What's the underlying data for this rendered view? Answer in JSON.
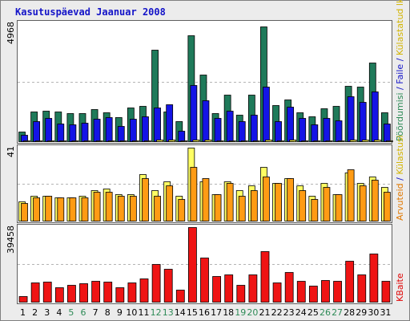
{
  "chart_data": {
    "type": "bar",
    "title": "Kasutuspäevad Jaanuar 2008",
    "categories": [
      "1",
      "2",
      "3",
      "4",
      "5",
      "6",
      "7",
      "8",
      "9",
      "10",
      "11",
      "12",
      "13",
      "14",
      "15",
      "16",
      "17",
      "18",
      "19",
      "20",
      "21",
      "22",
      "23",
      "24",
      "25",
      "26",
      "27",
      "28",
      "29",
      "30",
      "31"
    ],
    "weekend_days": [
      "5",
      "6",
      "12",
      "13",
      "19",
      "20",
      "26",
      "27"
    ],
    "colors": {
      "title": "#1414c8",
      "weekday_tick": "#000000",
      "weekend_tick": "#2e8b57",
      "page": "#ececec",
      "panel": "#ffffff"
    },
    "panels": [
      {
        "tick_label": "4968",
        "ylim": [
          0,
          4968
        ],
        "right_label_parts": [
          {
            "text": "Pöördumisi",
            "color": "#2e8b57"
          },
          {
            "text": " / ",
            "color": "#1414c8"
          },
          {
            "text": "Faile",
            "color": "#1414c8"
          },
          {
            "text": " / ",
            "color": "#1414c8"
          },
          {
            "text": "Külastatud lk",
            "color": "#d2b400"
          }
        ],
        "series": [
          {
            "name": "Pöördumisi",
            "color": "#1f7a5a",
            "values": [
              400,
              1250,
              1300,
              1250,
              1180,
              1180,
              1360,
              1200,
              1020,
              1420,
              1480,
              3850,
              1250,
              830,
              4450,
              2800,
              1180,
              1950,
              1120,
              1950,
              4820,
              1520,
              1760,
              1200,
              1060,
              1380,
              1480,
              2330,
              2300,
              3300,
              1200
            ]
          },
          {
            "name": "Faile",
            "color": "#1414e6",
            "values": [
              280,
              850,
              980,
              760,
              720,
              780,
              960,
              1030,
              640,
              950,
              1040,
              1420,
              1560,
              430,
              2370,
              1720,
              980,
              1280,
              860,
              1120,
              2300,
              840,
              1440,
              980,
              720,
              980,
              880,
              1880,
              1670,
              2090,
              760
            ]
          },
          {
            "name": "Külastatud lk",
            "color": "#f0e64b",
            "values": [
              20,
              40,
              40,
              30,
              30,
              30,
              40,
              40,
              20,
              40,
              40,
              60,
              60,
              20,
              60,
              60,
              40,
              40,
              30,
              40,
              60,
              30,
              60,
              40,
              30,
              40,
              40,
              60,
              60,
              60,
              20
            ]
          }
        ]
      },
      {
        "tick_label": "41",
        "ylim": [
          0,
          41
        ],
        "right_label_parts": [
          {
            "text": "Arvuteid",
            "color": "#e07800"
          },
          {
            "text": " / ",
            "color": "#1414c8"
          },
          {
            "text": "Külastusi",
            "color": "#d2b400"
          }
        ],
        "series": [
          {
            "name": "Külastusi",
            "color": "#ffff64",
            "values": [
              11,
              14,
              14,
              13,
              13,
              14,
              17,
              18,
              15,
              15,
              26,
              17,
              22,
              14,
              41,
              22,
              15,
              22,
              17,
              20,
              30,
              21,
              24,
              20,
              14,
              21,
              15,
              27,
              21,
              25,
              19
            ]
          },
          {
            "name": "Arvuteid",
            "color": "#ff9b14",
            "values": [
              10,
              13,
              14,
              13,
              13,
              13,
              16,
              16,
              14,
              14,
              24,
              14,
              20,
              12,
              30,
              24,
              15,
              21,
              14,
              17,
              25,
              21,
              24,
              17,
              12,
              19,
              15,
              29,
              20,
              23,
              16
            ]
          }
        ]
      },
      {
        "tick_label": "39458",
        "ylim": [
          0,
          39458
        ],
        "right_label_parts": [
          {
            "text": "KBaite",
            "color": "#e00000"
          }
        ],
        "series": [
          {
            "name": "KBaite",
            "color": "#ef1414",
            "values": [
              3000,
              10000,
              10500,
              7800,
              9000,
              9800,
              11000,
              10500,
              7600,
              10000,
              12500,
              19800,
              17300,
              6300,
              39458,
              23200,
              13500,
              14500,
              9000,
              14300,
              26800,
              10300,
              15500,
              11000,
              8500,
              11500,
              11000,
              21500,
              14500,
              25500,
              11000
            ]
          }
        ]
      }
    ]
  }
}
